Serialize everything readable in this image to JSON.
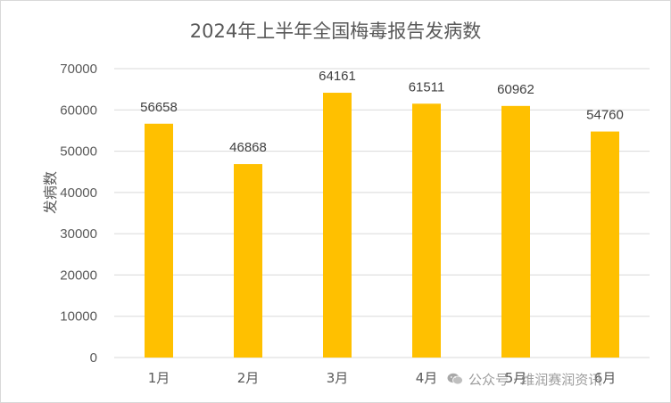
{
  "chart_data": {
    "type": "bar",
    "title": "2024年上半年全国梅毒报告发病数",
    "xlabel": "",
    "ylabel": "发病数",
    "categories": [
      "1月",
      "2月",
      "3月",
      "4月",
      "5月",
      "6月"
    ],
    "values": [
      56658,
      46868,
      64161,
      61511,
      60962,
      54760
    ],
    "ylim": [
      0,
      70000
    ],
    "yticks": [
      0,
      10000,
      20000,
      30000,
      40000,
      50000,
      60000,
      70000
    ],
    "grid": true,
    "bar_color": "#FFC000",
    "grid_color": "#D9D9D9",
    "text_color": "#595959"
  },
  "watermark": {
    "text": "公众号 · 维润赛润资讯",
    "icon": "wechat-icon"
  }
}
